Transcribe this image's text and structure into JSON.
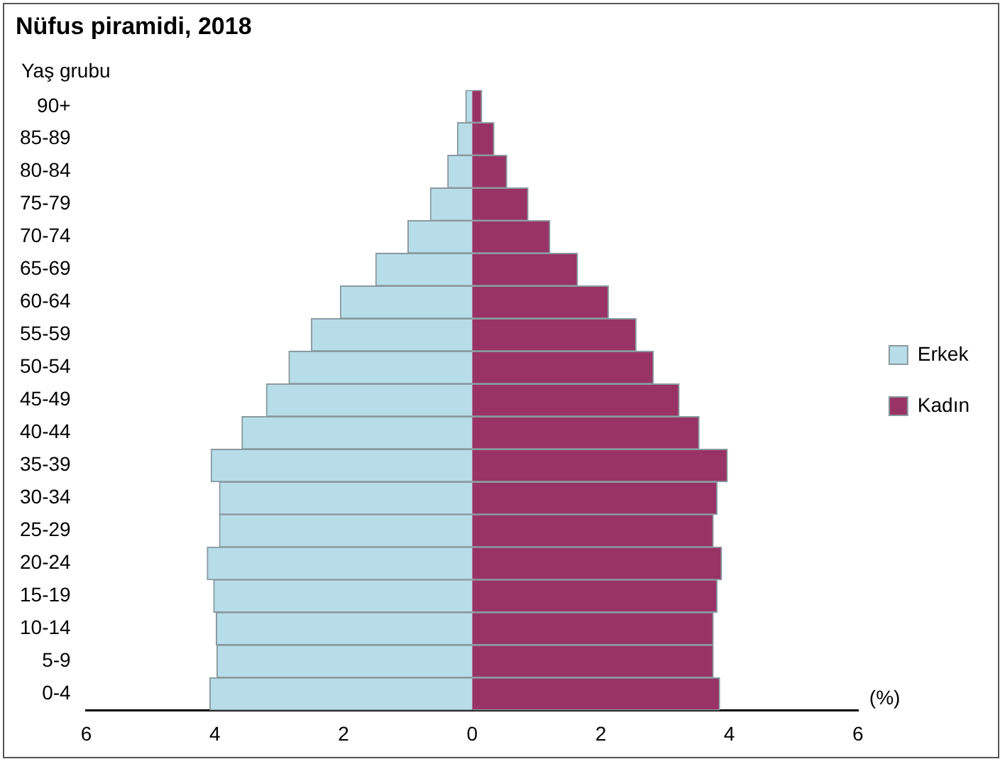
{
  "chart_data": {
    "type": "bar",
    "orientation": "horizontal",
    "stacked": true,
    "title": "Nüfus piramidi, 2018",
    "ylabel": "Yaş grubu",
    "xlabel": "(%)",
    "categories": [
      "90+",
      "85-89",
      "80-84",
      "75-79",
      "70-74",
      "65-69",
      "60-64",
      "55-59",
      "50-54",
      "45-49",
      "40-44",
      "35-39",
      "30-34",
      "25-29",
      "20-24",
      "15-19",
      "10-14",
      "5-9",
      "0-4"
    ],
    "series": [
      {
        "name": "Erkek",
        "color": "#b7dde8",
        "values": [
          -0.1,
          -0.23,
          -0.38,
          -0.65,
          -1.0,
          -1.5,
          -2.05,
          -2.5,
          -2.85,
          -3.2,
          -3.58,
          -4.06,
          -3.93,
          -3.93,
          -4.12,
          -4.02,
          -3.98,
          -3.97,
          -4.08
        ]
      },
      {
        "name": "Kadın",
        "color": "#993366",
        "values": [
          0.15,
          0.34,
          0.54,
          0.87,
          1.21,
          1.64,
          2.12,
          2.55,
          2.82,
          3.22,
          3.53,
          3.97,
          3.81,
          3.75,
          3.88,
          3.81,
          3.75,
          3.75,
          3.85
        ]
      }
    ],
    "xlim": [
      -6,
      6
    ],
    "xticks": [
      {
        "value": -6,
        "label": "6"
      },
      {
        "value": -4,
        "label": "4"
      },
      {
        "value": -2,
        "label": "2"
      },
      0,
      2,
      4,
      6
    ],
    "grid": false,
    "legend": "right"
  }
}
